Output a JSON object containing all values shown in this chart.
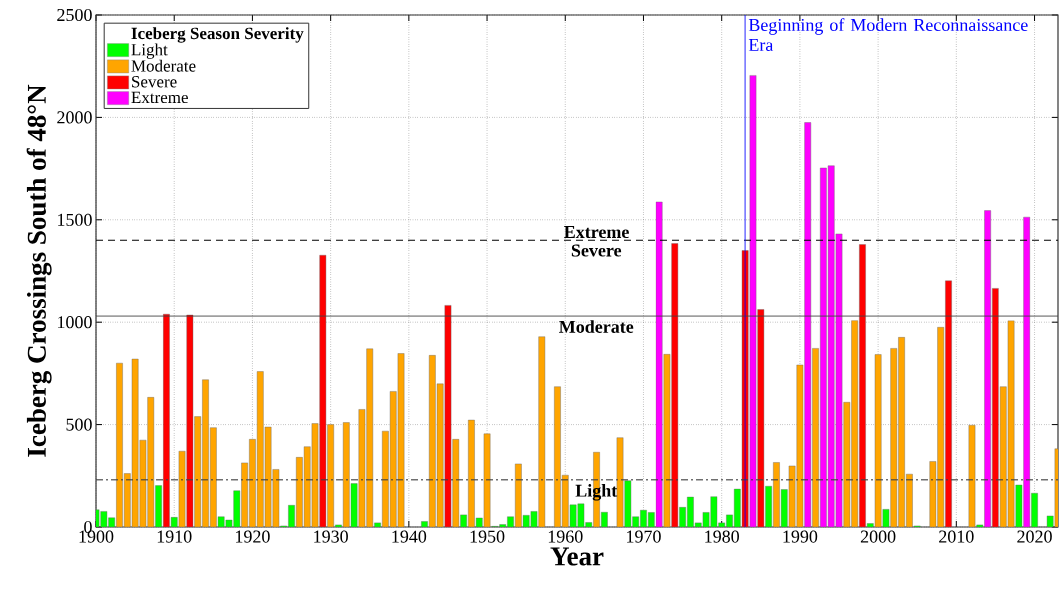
{
  "chart_data": {
    "type": "bar",
    "xlabel": "Year",
    "ylabel": "Iceberg Crossings South of 48°N",
    "legend_title": "Iceberg Season Severity",
    "legend": "top left",
    "grid": true,
    "xlim": [
      1900,
      2023
    ],
    "ylim": [
      0,
      2500
    ],
    "xticks": [
      1900,
      1910,
      1920,
      1930,
      1940,
      1950,
      1960,
      1970,
      1980,
      1990,
      2000,
      2010,
      2020
    ],
    "yticks": [
      0,
      500,
      1000,
      1500,
      2000,
      2500
    ],
    "series": [
      {
        "name": "Light",
        "color": "#00ff00",
        "x": [
          1900,
          1901,
          1902,
          1908,
          1910,
          1916,
          1917,
          1918,
          1924,
          1925,
          1931,
          1933,
          1936,
          1942,
          1947,
          1949,
          1951,
          1952,
          1953,
          1955,
          1956,
          1961,
          1962,
          1963,
          1965,
          1968,
          1969,
          1970,
          1971,
          1975,
          1976,
          1977,
          1978,
          1979,
          1980,
          1981,
          1982,
          1986,
          1988,
          1999,
          2001,
          2005,
          2013,
          2018,
          2020,
          2022
        ],
        "values": [
          84,
          76,
          45,
          202,
          47,
          50,
          34,
          177,
          5,
          106,
          10,
          212,
          20,
          27,
          59,
          44,
          3,
          12,
          50,
          57,
          76,
          108,
          113,
          22,
          72,
          226,
          50,
          82,
          71,
          96,
          146,
          20,
          71,
          148,
          20,
          59,
          185,
          199,
          183,
          17,
          86,
          5,
          10,
          205,
          165,
          54
        ]
      },
      {
        "name": "Moderate",
        "color": "#ffa500",
        "x": [
          1903,
          1904,
          1905,
          1906,
          1907,
          1911,
          1913,
          1914,
          1915,
          1919,
          1920,
          1921,
          1922,
          1923,
          1926,
          1927,
          1928,
          1930,
          1932,
          1934,
          1935,
          1937,
          1938,
          1939,
          1943,
          1944,
          1946,
          1948,
          1950,
          1954,
          1957,
          1959,
          1960,
          1964,
          1967,
          1973,
          1987,
          1989,
          1990,
          1992,
          1996,
          1997,
          2000,
          2002,
          2003,
          2004,
          2007,
          2008,
          2012,
          2016,
          2017,
          2023
        ],
        "values": [
          800,
          261,
          820,
          424,
          633,
          370,
          539,
          719,
          485,
          313,
          428,
          759,
          488,
          281,
          340,
          392,
          505,
          500,
          510,
          574,
          870,
          468,
          662,
          847,
          838,
          699,
          428,
          522,
          455,
          308,
          929,
          685,
          253,
          365,
          436,
          843,
          315,
          298,
          791,
          872,
          609,
          1008,
          842,
          872,
          926,
          258,
          320,
          975,
          497,
          685,
          1007,
          382
        ]
      },
      {
        "name": "Severe",
        "color": "#ff0000",
        "x": [
          1909,
          1912,
          1929,
          1945,
          1974,
          1983,
          1985,
          1998,
          2009,
          2015
        ],
        "values": [
          1039,
          1035,
          1327,
          1082,
          1384,
          1350,
          1062,
          1379,
          1202,
          1165
        ]
      },
      {
        "name": "Extreme",
        "color": "#ff00ff",
        "x": [
          1972,
          1984,
          1991,
          1993,
          1994,
          1995,
          2014,
          2019
        ],
        "values": [
          1587,
          2205,
          1975,
          1753,
          1764,
          1431,
          1545,
          1513
        ]
      }
    ],
    "ref_lines": [
      {
        "axis": "y",
        "value": 1400,
        "label": "Severe",
        "color": "#000000",
        "line_style": "dashed"
      },
      {
        "axis": "y",
        "value": 1030,
        "label": "Moderate",
        "color": "#404040",
        "line_style": "solid"
      },
      {
        "axis": "y",
        "value": 230,
        "label": "Light",
        "color": "#404040",
        "line_style": "dashdot"
      },
      {
        "axis": "x",
        "value": 1983,
        "label": "Beginning of Modern Reconnaissance Era",
        "color": "#0000ff",
        "line_style": "solid"
      }
    ],
    "annotations": [
      {
        "text": "Extreme",
        "x": 1964,
        "y": 1400
      }
    ]
  }
}
